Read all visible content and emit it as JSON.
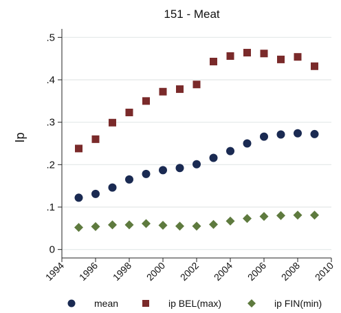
{
  "chart_data": {
    "type": "scatter",
    "title": "151 - Meat",
    "xlabel": "",
    "ylabel": "Ip",
    "xlim": [
      1994,
      2010
    ],
    "ylim": [
      -0.02,
      0.52
    ],
    "x_ticks": [
      1994,
      1996,
      1998,
      2000,
      2002,
      2004,
      2006,
      2008,
      2010
    ],
    "y_ticks": [
      0,
      0.1,
      0.2,
      0.3,
      0.4,
      0.5
    ],
    "y_tick_labels": [
      "0",
      ".1",
      ".2",
      ".3",
      ".4",
      ".5"
    ],
    "grid": true,
    "legend_position": "bottom",
    "x": [
      1995,
      1996,
      1997,
      1998,
      1999,
      2000,
      2001,
      2002,
      2003,
      2004,
      2005,
      2006,
      2007,
      2008,
      2009
    ],
    "series": [
      {
        "name": "mean",
        "marker": "circle",
        "color": "#1a2a52",
        "values": [
          0.122,
          0.131,
          0.146,
          0.165,
          0.178,
          0.187,
          0.192,
          0.201,
          0.216,
          0.232,
          0.25,
          0.266,
          0.271,
          0.274,
          0.272
        ]
      },
      {
        "name": "ip BEL(max)",
        "marker": "square",
        "color": "#7a2a2a",
        "values": [
          0.238,
          0.26,
          0.299,
          0.323,
          0.35,
          0.372,
          0.378,
          0.389,
          0.443,
          0.456,
          0.464,
          0.462,
          0.448,
          0.454,
          0.432
        ]
      },
      {
        "name": "ip FIN(min)",
        "marker": "diamond",
        "color": "#5e7a3e",
        "values": [
          0.052,
          0.054,
          0.058,
          0.058,
          0.061,
          0.057,
          0.055,
          0.055,
          0.059,
          0.067,
          0.073,
          0.078,
          0.08,
          0.081,
          0.081
        ]
      }
    ]
  }
}
